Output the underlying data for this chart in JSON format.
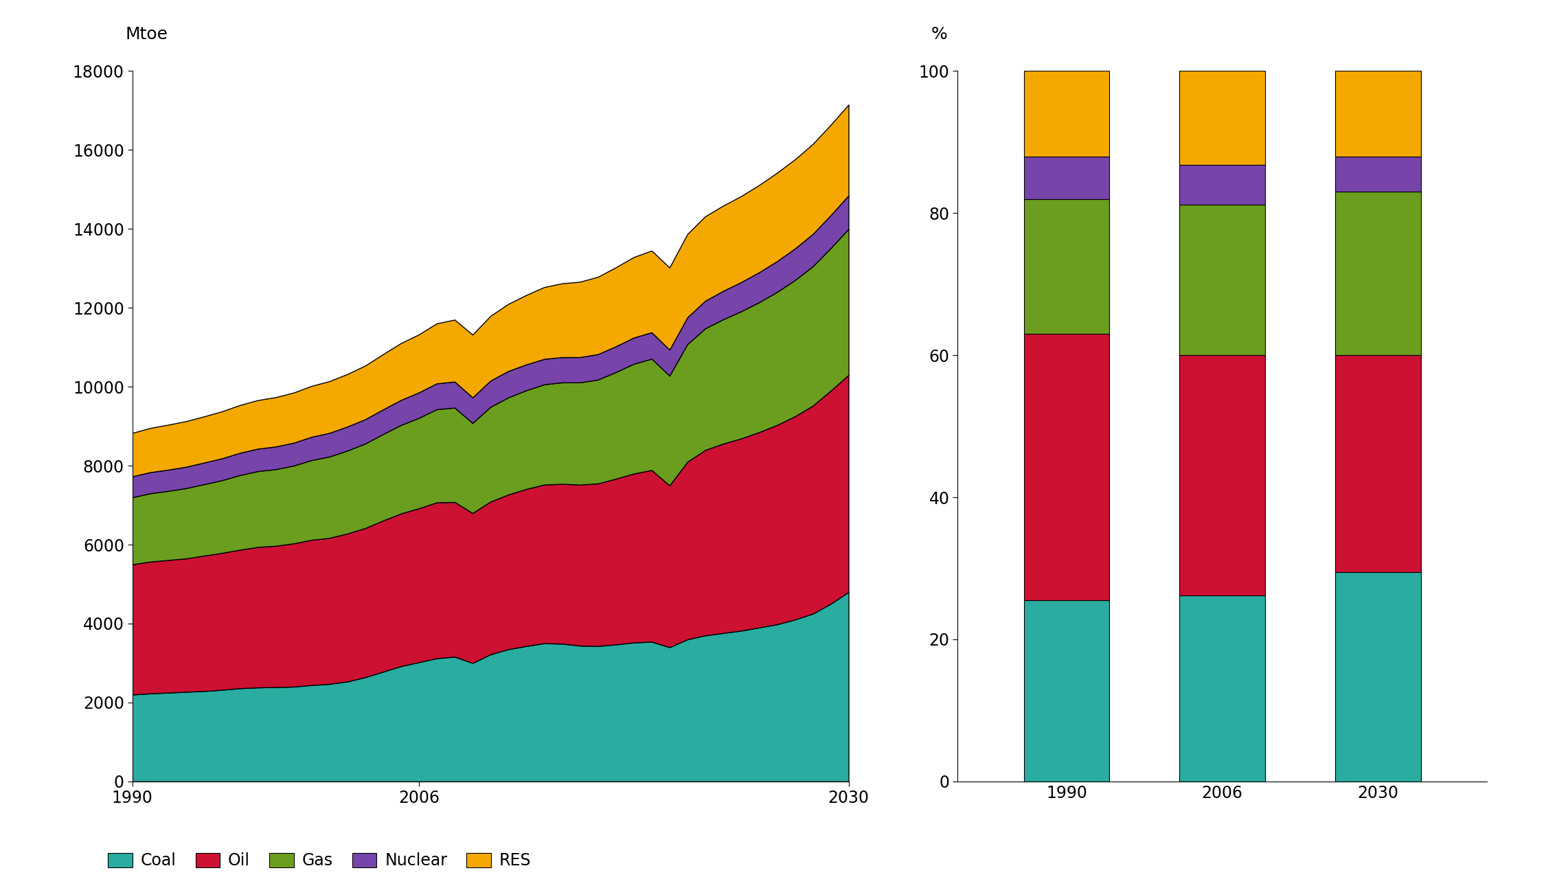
{
  "title_left": "Mtoe",
  "title_right": "%",
  "years_area": [
    1990,
    1991,
    1992,
    1993,
    1994,
    1995,
    1996,
    1997,
    1998,
    1999,
    2000,
    2001,
    2002,
    2003,
    2004,
    2005,
    2006,
    2007,
    2008,
    2009,
    2010,
    2011,
    2012,
    2013,
    2014,
    2015,
    2016,
    2017,
    2018,
    2019,
    2020,
    2021,
    2022,
    2023,
    2024,
    2025,
    2026,
    2027,
    2028,
    2029,
    2030
  ],
  "area_data": {
    "Coal": [
      2200,
      2230,
      2250,
      2270,
      2290,
      2320,
      2360,
      2380,
      2390,
      2400,
      2440,
      2470,
      2530,
      2640,
      2780,
      2920,
      3020,
      3120,
      3160,
      3000,
      3220,
      3350,
      3430,
      3500,
      3490,
      3440,
      3430,
      3470,
      3520,
      3540,
      3400,
      3600,
      3700,
      3760,
      3820,
      3900,
      3980,
      4100,
      4250,
      4500,
      4800
    ],
    "Oil": [
      3300,
      3340,
      3360,
      3380,
      3430,
      3470,
      3510,
      3560,
      3580,
      3630,
      3680,
      3700,
      3750,
      3780,
      3830,
      3870,
      3900,
      3950,
      3920,
      3800,
      3870,
      3920,
      3980,
      4020,
      4050,
      4080,
      4120,
      4200,
      4280,
      4350,
      4100,
      4500,
      4700,
      4800,
      4870,
      4950,
      5050,
      5150,
      5270,
      5400,
      5500
    ],
    "Gas": [
      1700,
      1730,
      1750,
      1780,
      1810,
      1840,
      1890,
      1920,
      1940,
      1970,
      2020,
      2060,
      2100,
      2140,
      2190,
      2240,
      2290,
      2360,
      2390,
      2280,
      2400,
      2460,
      2500,
      2540,
      2570,
      2590,
      2630,
      2700,
      2780,
      2820,
      2780,
      2980,
      3080,
      3150,
      3220,
      3290,
      3370,
      3450,
      3530,
      3610,
      3700
    ],
    "Nuclear": [
      530,
      535,
      538,
      542,
      548,
      555,
      565,
      570,
      575,
      580,
      590,
      600,
      610,
      615,
      625,
      635,
      645,
      655,
      660,
      650,
      665,
      670,
      655,
      645,
      640,
      640,
      645,
      655,
      665,
      670,
      660,
      680,
      700,
      720,
      740,
      760,
      780,
      800,
      820,
      835,
      850
    ],
    "RES": [
      1100,
      1120,
      1140,
      1155,
      1170,
      1190,
      1210,
      1230,
      1250,
      1270,
      1290,
      1310,
      1330,
      1360,
      1400,
      1440,
      1470,
      1520,
      1570,
      1590,
      1640,
      1700,
      1760,
      1820,
      1870,
      1910,
      1960,
      2000,
      2040,
      2070,
      2080,
      2110,
      2140,
      2160,
      2180,
      2210,
      2240,
      2260,
      2280,
      2290,
      2300
    ]
  },
  "bar_years": [
    "1990",
    "2006",
    "2030"
  ],
  "bar_data": {
    "Coal": [
      25.5,
      26.2,
      29.5
    ],
    "Oil": [
      37.5,
      33.8,
      30.5
    ],
    "Gas": [
      19.0,
      21.2,
      23.0
    ],
    "Nuclear": [
      6.0,
      5.6,
      5.0
    ],
    "RES": [
      12.0,
      13.2,
      12.0
    ]
  },
  "colors": {
    "Coal": "#2aaca0",
    "Oil": "#cc1133",
    "Gas": "#6b9e1f",
    "Nuclear": "#7744aa",
    "RES": "#f5a800"
  },
  "ylim_area": [
    0,
    18000
  ],
  "yticks_area": [
    0,
    2000,
    4000,
    6000,
    8000,
    10000,
    12000,
    14000,
    16000,
    18000
  ],
  "ylim_bar": [
    0,
    100
  ],
  "yticks_bar": [
    0,
    20,
    40,
    60,
    80,
    100
  ],
  "background_color": "#ffffff",
  "legend_order": [
    "Coal",
    "Oil",
    "Gas",
    "Nuclear",
    "RES"
  ]
}
